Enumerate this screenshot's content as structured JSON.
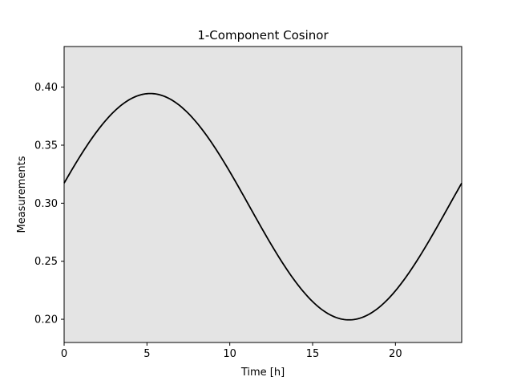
{
  "chart_data": {
    "type": "line",
    "title": "1-Component Cosinor",
    "xlabel": "Time [h]",
    "ylabel": "Measurements",
    "xlim": [
      0,
      24
    ],
    "ylim": [
      0.18,
      0.435
    ],
    "x_ticks": [
      0,
      5,
      10,
      15,
      20
    ],
    "y_ticks": [
      0.2,
      0.25,
      0.3,
      0.35,
      0.4
    ],
    "x_tick_labels": [
      "0",
      "5",
      "10",
      "15",
      "20"
    ],
    "y_tick_labels": [
      "0.20",
      "0.25",
      "0.30",
      "0.35",
      "0.40"
    ],
    "grid": false,
    "background_color": "#e4e4e4",
    "line_color": "#000000",
    "series": [
      {
        "model": "cosinor",
        "mesor": 0.297,
        "amplitude": 0.0975,
        "period": 24,
        "acrophase_h": 5.2,
        "x": [
          0,
          1,
          2,
          3,
          4,
          5,
          6,
          7,
          8,
          9,
          10,
          11,
          12,
          13,
          14,
          15,
          16,
          17,
          18,
          19,
          20,
          21,
          22,
          23,
          24
        ],
        "values": [
          0.317,
          0.34,
          0.361,
          0.378,
          0.389,
          0.394,
          0.392,
          0.383,
          0.369,
          0.35,
          0.327,
          0.303,
          0.279,
          0.255,
          0.234,
          0.217,
          0.205,
          0.2,
          0.201,
          0.209,
          0.223,
          0.242,
          0.265,
          0.29,
          0.317
        ]
      }
    ]
  }
}
